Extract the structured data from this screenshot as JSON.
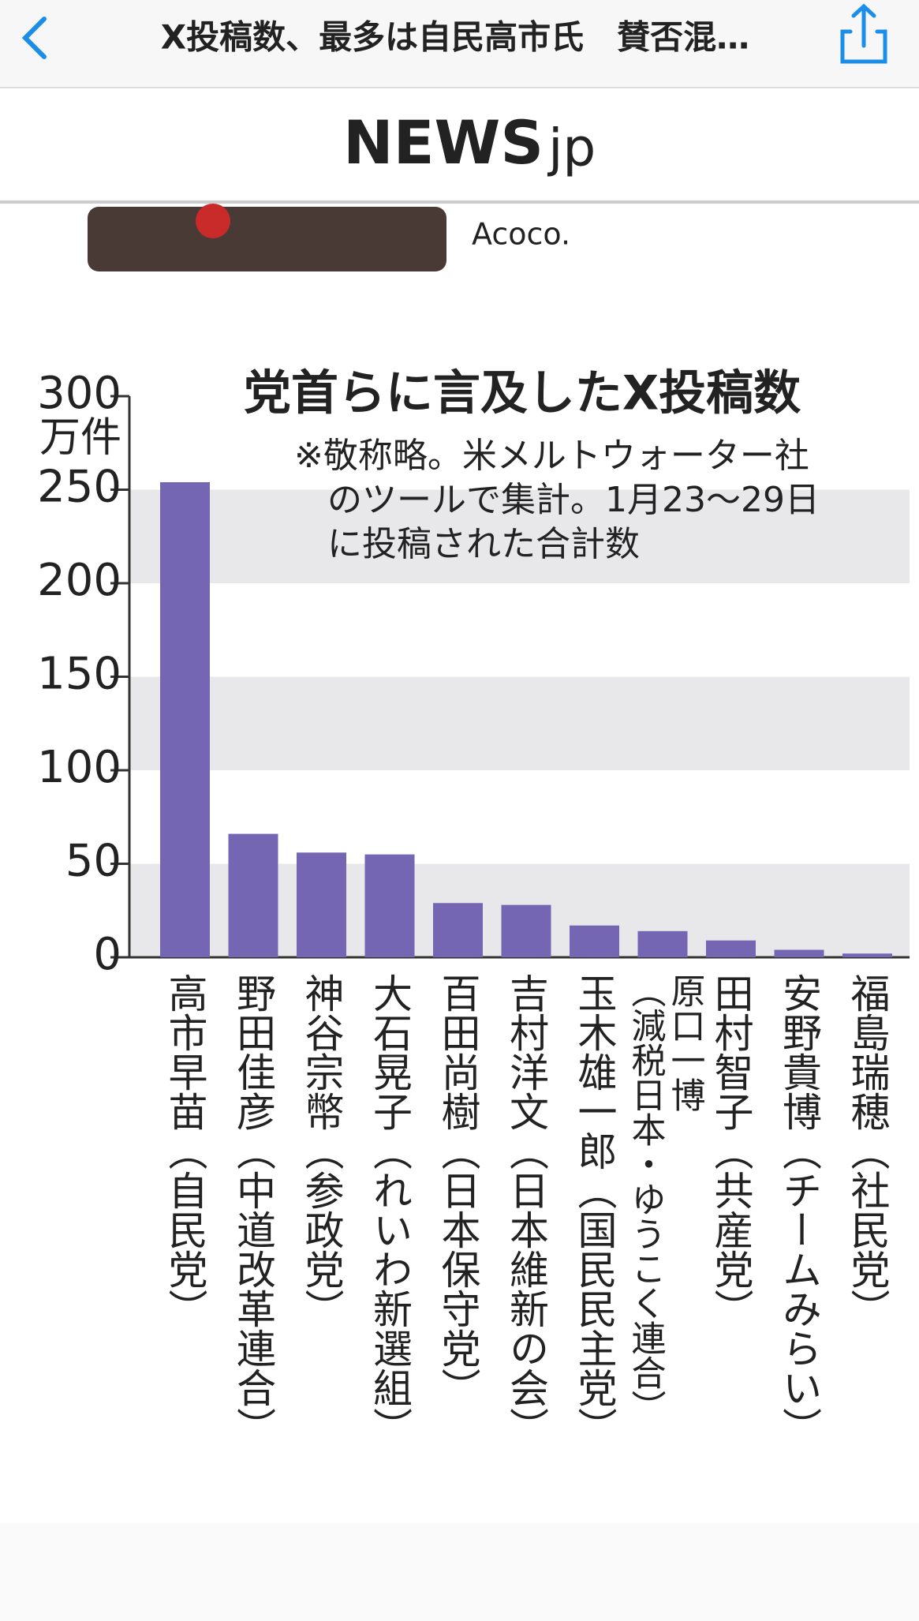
{
  "header": {
    "title": "X投稿数、最多は自民高市氏　賛否混…"
  },
  "logo": {
    "main": "NEWS",
    "suffix": "jp"
  },
  "image_caption": "Acoco.",
  "chart_data": {
    "type": "bar",
    "title": "党首らに言及したX投稿数",
    "note": [
      "※敬称略。米メルトウォーター社",
      "のツールで集計。1月23～29日",
      "に投稿された合計数"
    ],
    "y_unit": "万件",
    "categories": [
      "高市早苗",
      "野田佳彦",
      "神谷宗幣",
      "大石晃子",
      "百田尚樹",
      "吉村洋文",
      "玉木雄一郎",
      "原口一博",
      "田村智子",
      "安野貴博",
      "福島瑞穂"
    ],
    "parties": [
      "（自民党）",
      "（中道改革連合）",
      "（参政党）",
      "（れいわ新選組）",
      "（日本保守党）",
      "（日本維新の会）",
      "（国民民主党）",
      "（減税日本・ゆうこく連合）",
      "（共産党）",
      "（チームみらい）",
      "（社民党）"
    ],
    "values": [
      254,
      66,
      56,
      55,
      29,
      28,
      17,
      14,
      9,
      4,
      2
    ],
    "color": "#7566b3",
    "ylim": [
      0,
      300
    ],
    "yticks": [
      0,
      50,
      100,
      150,
      200,
      250,
      300
    ],
    "bands": true
  }
}
